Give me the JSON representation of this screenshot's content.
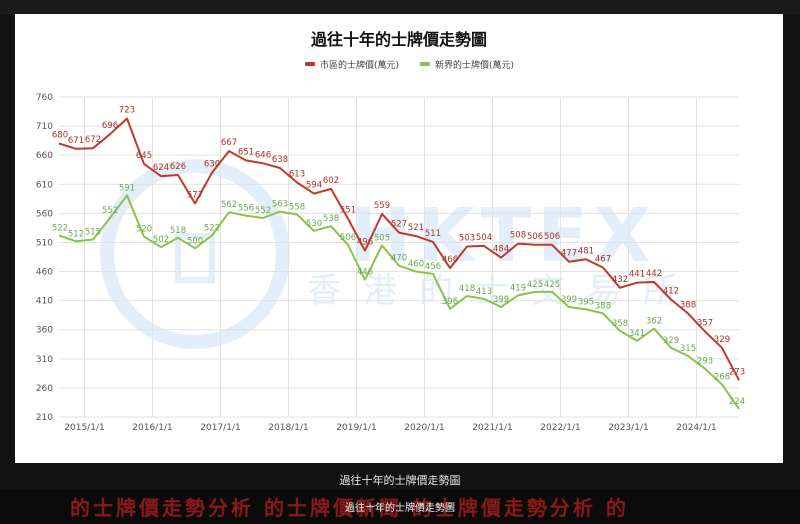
{
  "chart_data": {
    "type": "line",
    "title": "過往十年的士牌價走勢圖",
    "ylim": [
      210,
      760
    ],
    "yticks": [
      210,
      260,
      310,
      360,
      410,
      460,
      510,
      560,
      610,
      660,
      710,
      760
    ],
    "xticks": [
      {
        "label": "2015/1/1",
        "x": 1.5
      },
      {
        "label": "2016/1/1",
        "x": 5.5
      },
      {
        "label": "2017/1/1",
        "x": 9.5
      },
      {
        "label": "2018/1/1",
        "x": 13.5
      },
      {
        "label": "2019/1/1",
        "x": 17.5
      },
      {
        "label": "2020/1/1",
        "x": 21.5
      },
      {
        "label": "2021/1/1",
        "x": 25.5
      },
      {
        "label": "2022/1/1",
        "x": 29.5
      },
      {
        "label": "2023/1/1",
        "x": 33.5
      },
      {
        "label": "2024/1/1",
        "x": 37.5
      }
    ],
    "series": [
      {
        "name": "市區的士牌價(萬元)",
        "color": "#c0392b",
        "labelColor": "#a93226",
        "values": [
          680,
          671,
          672,
          696,
          723,
          645,
          624,
          626,
          577,
          630,
          667,
          651,
          646,
          638,
          613,
          594,
          602,
          551,
          496,
          559,
          527,
          521,
          511,
          466,
          503,
          504,
          484,
          508,
          506,
          506,
          477,
          481,
          467,
          432,
          441,
          442,
          412,
          388,
          357,
          329,
          273
        ],
        "labels": [
          680,
          671,
          672,
          696,
          723,
          645,
          624,
          626,
          577,
          630,
          667,
          651,
          646,
          638,
          613,
          594,
          602,
          551,
          496,
          559,
          527,
          521,
          511,
          466,
          503,
          504,
          484,
          508,
          506,
          506,
          477,
          481,
          467,
          432,
          441,
          442,
          412,
          388,
          357,
          329,
          273
        ]
      },
      {
        "name": "新界的士牌價(萬元)",
        "color": "#8bc34a",
        "labelColor": "#6aa84f",
        "values": [
          522,
          512,
          515,
          552,
          591,
          520,
          502,
          518,
          500,
          522,
          562,
          556,
          552,
          563,
          558,
          530,
          538,
          506,
          446,
          505,
          470,
          460,
          456,
          396,
          418,
          413,
          399,
          419,
          425,
          425,
          399,
          395,
          388,
          358,
          341,
          362,
          329,
          315,
          293,
          266,
          224
        ],
        "labels": [
          522,
          512,
          515,
          552,
          591,
          520,
          502,
          518,
          500,
          522,
          562,
          556,
          552,
          563,
          558,
          530,
          538,
          506,
          446,
          505,
          470,
          460,
          456,
          396,
          418,
          413,
          399,
          419,
          425,
          425,
          399,
          395,
          388,
          358,
          341,
          362,
          329,
          315,
          293,
          266,
          224
        ]
      }
    ]
  },
  "watermark": {
    "brand": "HKTEX",
    "chinese": "香港的士交易所"
  },
  "caption": "過往十年的士牌價走勢圖",
  "banner": {
    "text": "的士牌價走勢分析 的士牌價新聞 的士牌價走勢分析 的",
    "subtitle": "過往十年的士牌價走勢圖"
  }
}
